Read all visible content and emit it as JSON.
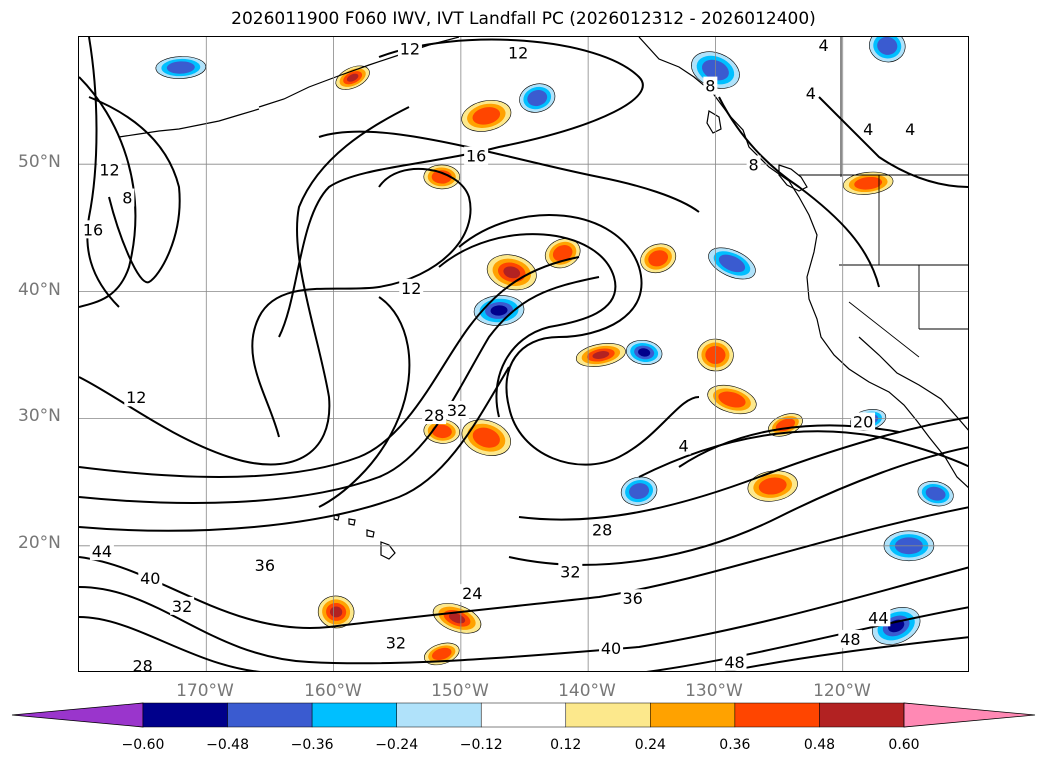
{
  "title": "2026011900 F060 IWV, IVT Landfall PC (2026012312 - 2026012400)",
  "map": {
    "projection": "cylindrical",
    "lon_range": [
      -180,
      -110
    ],
    "lat_range": [
      10,
      60
    ],
    "gridlines": true,
    "lat_ticks": [
      "50°N",
      "40°N",
      "30°N",
      "20°N"
    ],
    "lon_ticks": [
      "170°W",
      "160°W",
      "150°W",
      "140°W",
      "130°W",
      "120°W"
    ],
    "contour_field": "IWV",
    "contour_labels": [
      {
        "text": "12",
        "lon": -154,
        "lat": 59
      },
      {
        "text": "12",
        "lon": -145.5,
        "lat": 58.7
      },
      {
        "text": "4",
        "lon": -121.5,
        "lat": 59.3
      },
      {
        "text": "4",
        "lon": -122.5,
        "lat": 55.5
      },
      {
        "text": "4",
        "lon": -118,
        "lat": 52.7
      },
      {
        "text": "4",
        "lon": -114.7,
        "lat": 52.7
      },
      {
        "text": "8",
        "lon": -130.4,
        "lat": 56.1
      },
      {
        "text": "8",
        "lon": -127,
        "lat": 49.9
      },
      {
        "text": "16",
        "lon": -148.8,
        "lat": 50.6
      },
      {
        "text": "12",
        "lon": -177.6,
        "lat": 49.5
      },
      {
        "text": "8",
        "lon": -176.2,
        "lat": 47.3
      },
      {
        "text": "16",
        "lon": -178.9,
        "lat": 44.8
      },
      {
        "text": "12",
        "lon": -153.9,
        "lat": 40.2
      },
      {
        "text": "12",
        "lon": -175.5,
        "lat": 31.6
      },
      {
        "text": "28",
        "lon": -152.1,
        "lat": 30.2
      },
      {
        "text": "32",
        "lon": -150.3,
        "lat": 30.6
      },
      {
        "text": "4",
        "lon": -132.5,
        "lat": 27.8
      },
      {
        "text": "20",
        "lon": -118.4,
        "lat": 29.7
      },
      {
        "text": "28",
        "lon": -138.9,
        "lat": 21.2
      },
      {
        "text": "44",
        "lon": -178.2,
        "lat": 19.5
      },
      {
        "text": "40",
        "lon": -174.4,
        "lat": 17.4
      },
      {
        "text": "36",
        "lon": -165.4,
        "lat": 18.4
      },
      {
        "text": "32",
        "lon": -171.9,
        "lat": 15.2
      },
      {
        "text": "24",
        "lon": -149.1,
        "lat": 16.2
      },
      {
        "text": "32",
        "lon": -155.1,
        "lat": 12.3
      },
      {
        "text": "32",
        "lon": -141.4,
        "lat": 17.9
      },
      {
        "text": "36",
        "lon": -136.5,
        "lat": 15.8
      },
      {
        "text": "40",
        "lon": -138.2,
        "lat": 11.9
      },
      {
        "text": "48",
        "lon": -128.5,
        "lat": 10.8
      },
      {
        "text": "44",
        "lon": -117.2,
        "lat": 14.3
      },
      {
        "text": "48",
        "lon": -119.4,
        "lat": 12.6
      },
      {
        "text": "28",
        "lon": -175,
        "lat": 10.5
      }
    ]
  },
  "colorbar": {
    "ticks": [
      "−0.60",
      "−0.48",
      "−0.36",
      "−0.24",
      "−0.12",
      "0.12",
      "0.24",
      "0.36",
      "0.48",
      "0.60"
    ],
    "bins": [
      {
        "range": "< -0.60",
        "color": "#9a35cc"
      },
      {
        "range": "-0.60 to -0.48",
        "color": "#00008b"
      },
      {
        "range": "-0.48 to -0.36",
        "color": "#3a5bd0"
      },
      {
        "range": "-0.36 to -0.24",
        "color": "#00bfff"
      },
      {
        "range": "-0.24 to -0.12",
        "color": "#b0e2fa"
      },
      {
        "range": "-0.12 to 0.12",
        "color": "#ffffff"
      },
      {
        "range": "0.12 to 0.24",
        "color": "#fce88c"
      },
      {
        "range": "0.24 to 0.36",
        "color": "#ffa200"
      },
      {
        "range": "0.36 to 0.48",
        "color": "#ff4500"
      },
      {
        "range": "0.48 to 0.60",
        "color": "#b22222"
      },
      {
        "range": "> 0.60",
        "color": "#ff89b4"
      }
    ],
    "extend": "both"
  },
  "shaded_regions": [
    {
      "sign": "positive",
      "level": 0.48,
      "lon": -158.5,
      "lat": 56.8
    },
    {
      "sign": "positive",
      "level": 0.36,
      "lon": -148,
      "lat": 53.8
    },
    {
      "sign": "positive",
      "level": 0.36,
      "lon": -151.5,
      "lat": 49
    },
    {
      "sign": "positive",
      "level": 0.48,
      "lon": -146,
      "lat": 41.5
    },
    {
      "sign": "positive",
      "level": 0.36,
      "lon": -142,
      "lat": 43
    },
    {
      "sign": "positive",
      "level": 0.48,
      "lon": -139,
      "lat": 35
    },
    {
      "sign": "positive",
      "level": 0.36,
      "lon": -130,
      "lat": 35
    },
    {
      "sign": "positive",
      "level": 0.36,
      "lon": -128.7,
      "lat": 31.5
    },
    {
      "sign": "positive",
      "level": 0.36,
      "lon": -124.5,
      "lat": 29.5
    },
    {
      "sign": "positive",
      "level": 0.36,
      "lon": -125.5,
      "lat": 24.7
    },
    {
      "sign": "positive",
      "level": 0.36,
      "lon": -151.5,
      "lat": 29
    },
    {
      "sign": "positive",
      "level": 0.36,
      "lon": -148,
      "lat": 28.5
    },
    {
      "sign": "positive",
      "level": 0.36,
      "lon": -134.5,
      "lat": 42.6
    },
    {
      "sign": "positive",
      "level": 0.36,
      "lon": -118,
      "lat": 48.5
    },
    {
      "sign": "positive",
      "level": 0.48,
      "lon": -159.8,
      "lat": 14.8
    },
    {
      "sign": "positive",
      "level": 0.48,
      "lon": -150.3,
      "lat": 14.3
    },
    {
      "sign": "positive",
      "level": 0.36,
      "lon": -151.5,
      "lat": 11.5
    },
    {
      "sign": "negative",
      "level": -0.48,
      "lon": -147,
      "lat": 38.5
    },
    {
      "sign": "negative",
      "level": -0.48,
      "lon": -135.6,
      "lat": 35.2
    },
    {
      "sign": "negative",
      "level": -0.36,
      "lon": -130,
      "lat": 57.4
    },
    {
      "sign": "negative",
      "level": -0.36,
      "lon": -144,
      "lat": 55.2
    },
    {
      "sign": "negative",
      "level": -0.36,
      "lon": -172,
      "lat": 57.6
    },
    {
      "sign": "negative",
      "level": -0.36,
      "lon": -116.5,
      "lat": 59.3
    },
    {
      "sign": "negative",
      "level": -0.36,
      "lon": -128.7,
      "lat": 42.2
    },
    {
      "sign": "negative",
      "level": -0.36,
      "lon": -118,
      "lat": 29.9
    },
    {
      "sign": "negative",
      "level": -0.36,
      "lon": -114.8,
      "lat": 20
    },
    {
      "sign": "negative",
      "level": -0.36,
      "lon": -112.7,
      "lat": 24.1
    },
    {
      "sign": "negative",
      "level": -0.48,
      "lon": -115.8,
      "lat": 13.7
    },
    {
      "sign": "negative",
      "level": -0.36,
      "lon": -136,
      "lat": 24.3
    }
  ]
}
